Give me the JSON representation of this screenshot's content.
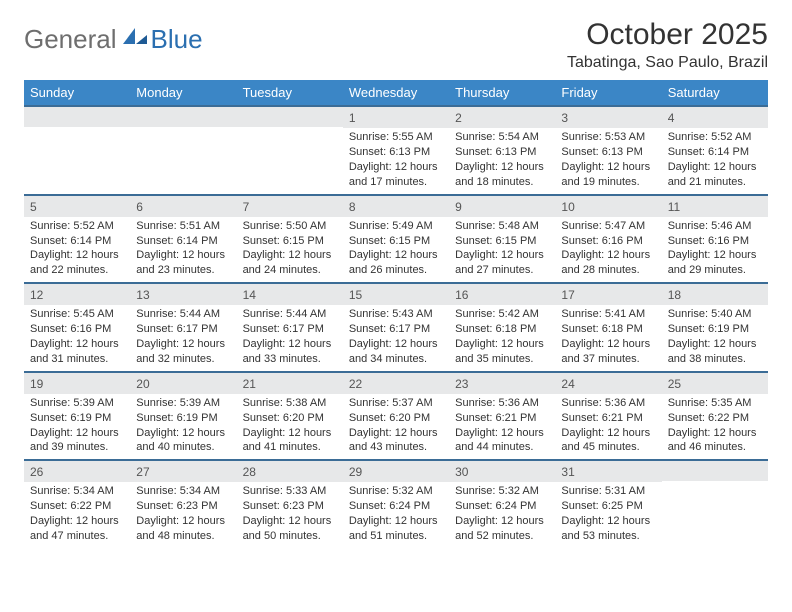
{
  "logo": {
    "general": "General",
    "blue": "Blue"
  },
  "title": "October 2025",
  "location": "Tabatinga, Sao Paulo, Brazil",
  "colors": {
    "header_bg": "#3b86c6",
    "row_border": "#3b6c96",
    "daynum_bg": "#e7e8e9",
    "logo_gray": "#6e6e6e",
    "logo_blue": "#2b6fb0"
  },
  "day_headers": [
    "Sunday",
    "Monday",
    "Tuesday",
    "Wednesday",
    "Thursday",
    "Friday",
    "Saturday"
  ],
  "weeks": [
    [
      {
        "num": "",
        "lines": []
      },
      {
        "num": "",
        "lines": []
      },
      {
        "num": "",
        "lines": []
      },
      {
        "num": "1",
        "lines": [
          "Sunrise: 5:55 AM",
          "Sunset: 6:13 PM",
          "Daylight: 12 hours",
          "and 17 minutes."
        ]
      },
      {
        "num": "2",
        "lines": [
          "Sunrise: 5:54 AM",
          "Sunset: 6:13 PM",
          "Daylight: 12 hours",
          "and 18 minutes."
        ]
      },
      {
        "num": "3",
        "lines": [
          "Sunrise: 5:53 AM",
          "Sunset: 6:13 PM",
          "Daylight: 12 hours",
          "and 19 minutes."
        ]
      },
      {
        "num": "4",
        "lines": [
          "Sunrise: 5:52 AM",
          "Sunset: 6:14 PM",
          "Daylight: 12 hours",
          "and 21 minutes."
        ]
      }
    ],
    [
      {
        "num": "5",
        "lines": [
          "Sunrise: 5:52 AM",
          "Sunset: 6:14 PM",
          "Daylight: 12 hours",
          "and 22 minutes."
        ]
      },
      {
        "num": "6",
        "lines": [
          "Sunrise: 5:51 AM",
          "Sunset: 6:14 PM",
          "Daylight: 12 hours",
          "and 23 minutes."
        ]
      },
      {
        "num": "7",
        "lines": [
          "Sunrise: 5:50 AM",
          "Sunset: 6:15 PM",
          "Daylight: 12 hours",
          "and 24 minutes."
        ]
      },
      {
        "num": "8",
        "lines": [
          "Sunrise: 5:49 AM",
          "Sunset: 6:15 PM",
          "Daylight: 12 hours",
          "and 26 minutes."
        ]
      },
      {
        "num": "9",
        "lines": [
          "Sunrise: 5:48 AM",
          "Sunset: 6:15 PM",
          "Daylight: 12 hours",
          "and 27 minutes."
        ]
      },
      {
        "num": "10",
        "lines": [
          "Sunrise: 5:47 AM",
          "Sunset: 6:16 PM",
          "Daylight: 12 hours",
          "and 28 minutes."
        ]
      },
      {
        "num": "11",
        "lines": [
          "Sunrise: 5:46 AM",
          "Sunset: 6:16 PM",
          "Daylight: 12 hours",
          "and 29 minutes."
        ]
      }
    ],
    [
      {
        "num": "12",
        "lines": [
          "Sunrise: 5:45 AM",
          "Sunset: 6:16 PM",
          "Daylight: 12 hours",
          "and 31 minutes."
        ]
      },
      {
        "num": "13",
        "lines": [
          "Sunrise: 5:44 AM",
          "Sunset: 6:17 PM",
          "Daylight: 12 hours",
          "and 32 minutes."
        ]
      },
      {
        "num": "14",
        "lines": [
          "Sunrise: 5:44 AM",
          "Sunset: 6:17 PM",
          "Daylight: 12 hours",
          "and 33 minutes."
        ]
      },
      {
        "num": "15",
        "lines": [
          "Sunrise: 5:43 AM",
          "Sunset: 6:17 PM",
          "Daylight: 12 hours",
          "and 34 minutes."
        ]
      },
      {
        "num": "16",
        "lines": [
          "Sunrise: 5:42 AM",
          "Sunset: 6:18 PM",
          "Daylight: 12 hours",
          "and 35 minutes."
        ]
      },
      {
        "num": "17",
        "lines": [
          "Sunrise: 5:41 AM",
          "Sunset: 6:18 PM",
          "Daylight: 12 hours",
          "and 37 minutes."
        ]
      },
      {
        "num": "18",
        "lines": [
          "Sunrise: 5:40 AM",
          "Sunset: 6:19 PM",
          "Daylight: 12 hours",
          "and 38 minutes."
        ]
      }
    ],
    [
      {
        "num": "19",
        "lines": [
          "Sunrise: 5:39 AM",
          "Sunset: 6:19 PM",
          "Daylight: 12 hours",
          "and 39 minutes."
        ]
      },
      {
        "num": "20",
        "lines": [
          "Sunrise: 5:39 AM",
          "Sunset: 6:19 PM",
          "Daylight: 12 hours",
          "and 40 minutes."
        ]
      },
      {
        "num": "21",
        "lines": [
          "Sunrise: 5:38 AM",
          "Sunset: 6:20 PM",
          "Daylight: 12 hours",
          "and 41 minutes."
        ]
      },
      {
        "num": "22",
        "lines": [
          "Sunrise: 5:37 AM",
          "Sunset: 6:20 PM",
          "Daylight: 12 hours",
          "and 43 minutes."
        ]
      },
      {
        "num": "23",
        "lines": [
          "Sunrise: 5:36 AM",
          "Sunset: 6:21 PM",
          "Daylight: 12 hours",
          "and 44 minutes."
        ]
      },
      {
        "num": "24",
        "lines": [
          "Sunrise: 5:36 AM",
          "Sunset: 6:21 PM",
          "Daylight: 12 hours",
          "and 45 minutes."
        ]
      },
      {
        "num": "25",
        "lines": [
          "Sunrise: 5:35 AM",
          "Sunset: 6:22 PM",
          "Daylight: 12 hours",
          "and 46 minutes."
        ]
      }
    ],
    [
      {
        "num": "26",
        "lines": [
          "Sunrise: 5:34 AM",
          "Sunset: 6:22 PM",
          "Daylight: 12 hours",
          "and 47 minutes."
        ]
      },
      {
        "num": "27",
        "lines": [
          "Sunrise: 5:34 AM",
          "Sunset: 6:23 PM",
          "Daylight: 12 hours",
          "and 48 minutes."
        ]
      },
      {
        "num": "28",
        "lines": [
          "Sunrise: 5:33 AM",
          "Sunset: 6:23 PM",
          "Daylight: 12 hours",
          "and 50 minutes."
        ]
      },
      {
        "num": "29",
        "lines": [
          "Sunrise: 5:32 AM",
          "Sunset: 6:24 PM",
          "Daylight: 12 hours",
          "and 51 minutes."
        ]
      },
      {
        "num": "30",
        "lines": [
          "Sunrise: 5:32 AM",
          "Sunset: 6:24 PM",
          "Daylight: 12 hours",
          "and 52 minutes."
        ]
      },
      {
        "num": "31",
        "lines": [
          "Sunrise: 5:31 AM",
          "Sunset: 6:25 PM",
          "Daylight: 12 hours",
          "and 53 minutes."
        ]
      },
      {
        "num": "",
        "lines": []
      }
    ]
  ]
}
